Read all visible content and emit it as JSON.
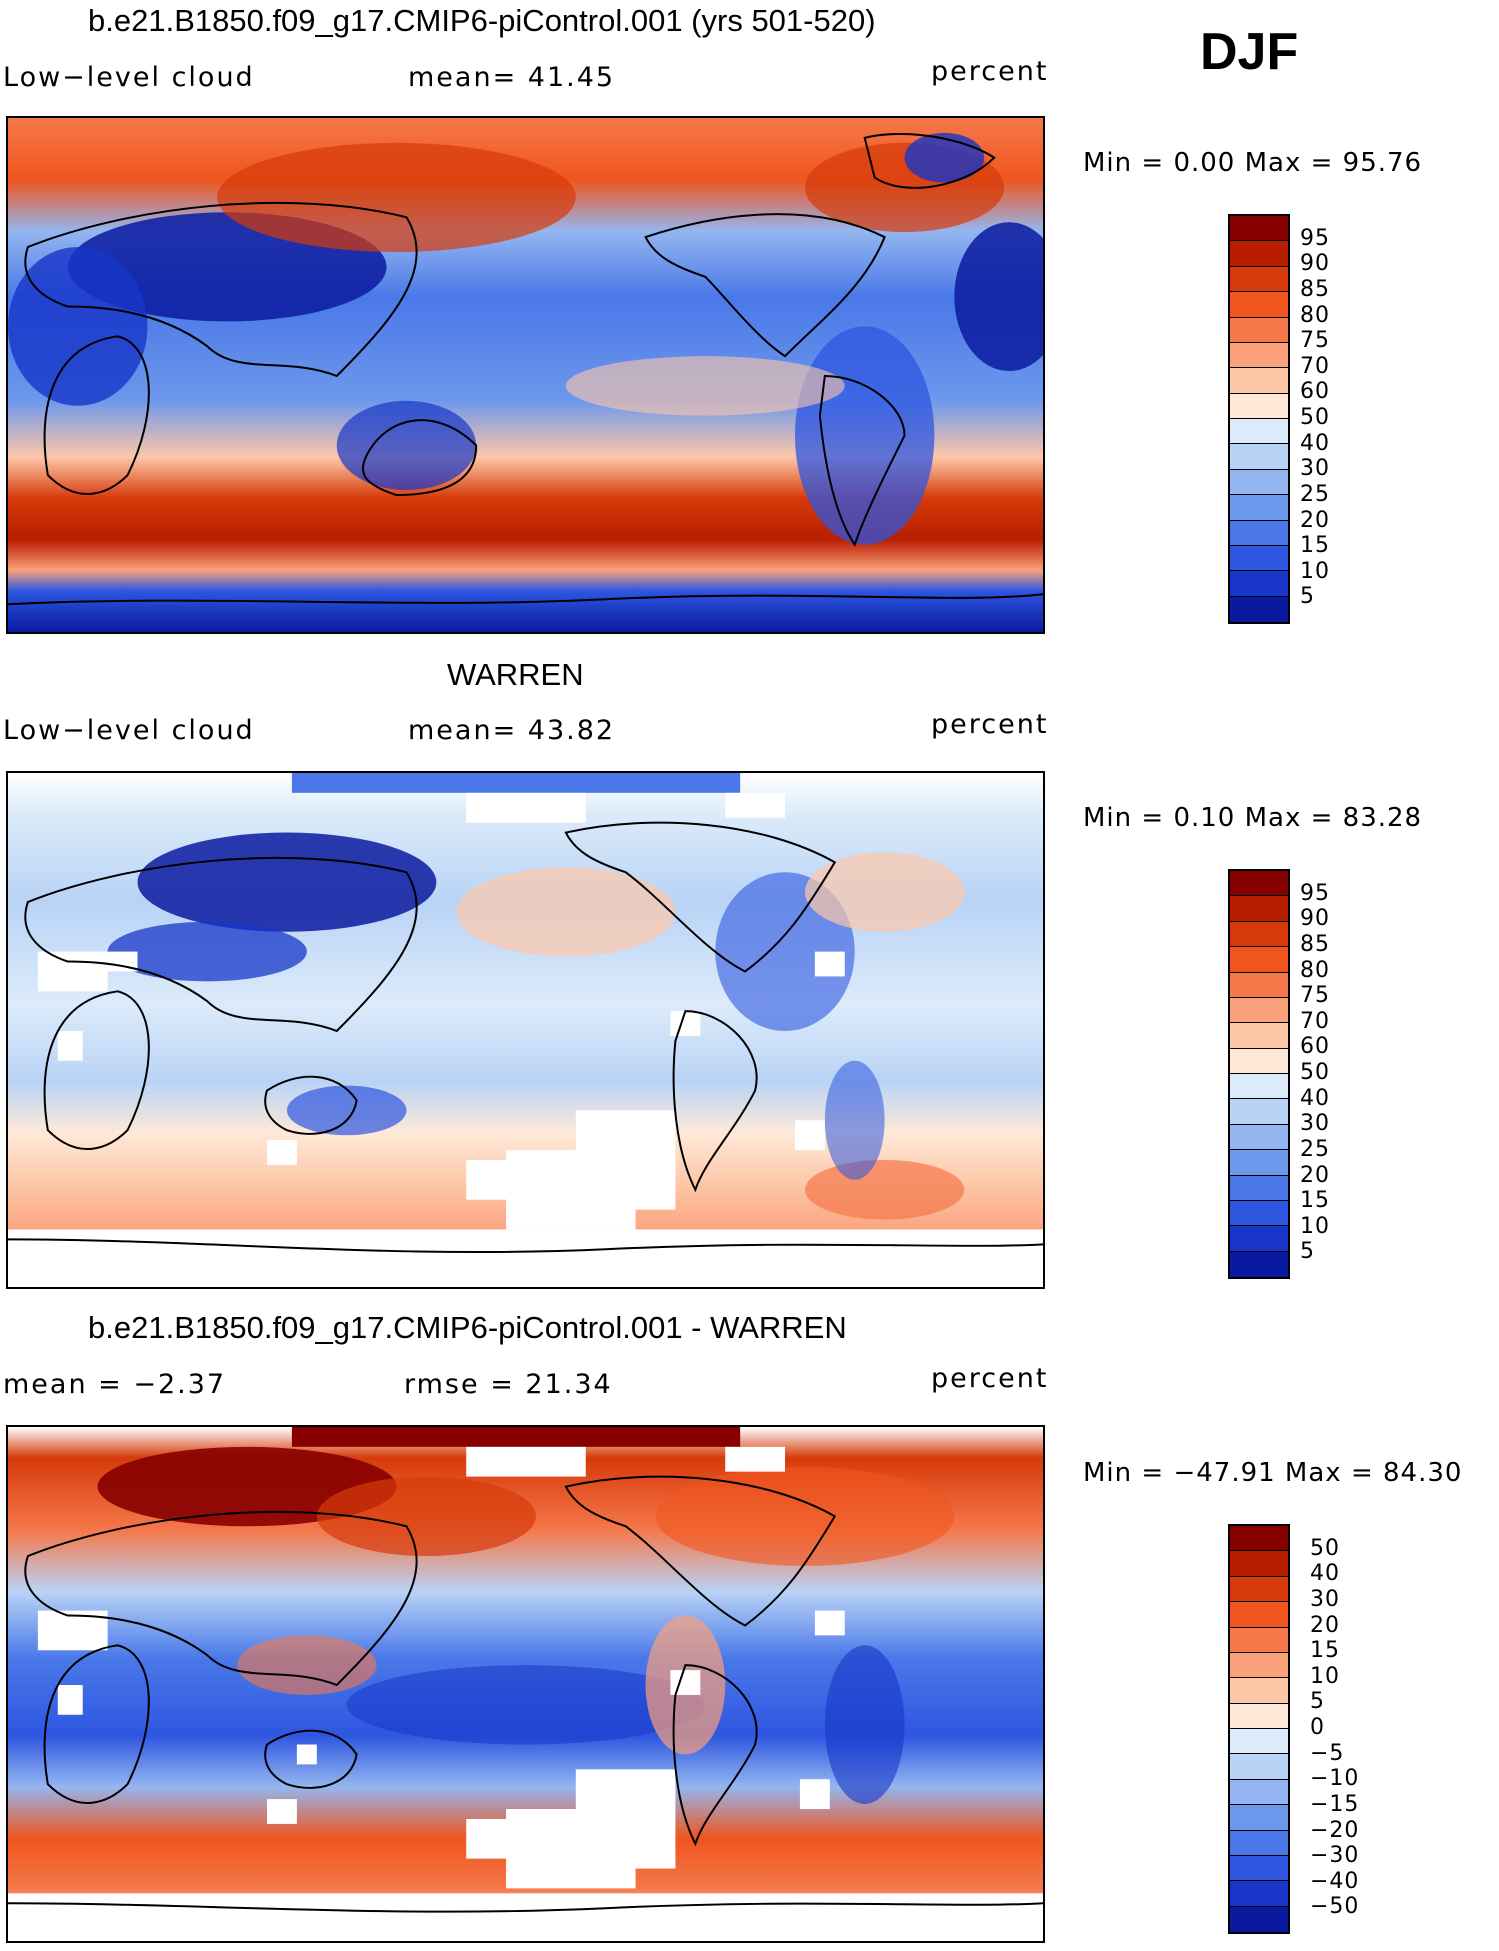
{
  "season": "DJF",
  "panels": [
    {
      "title": "b.e21.B1850.f09_g17.CMIP6-piControl.001 (yrs 501-520)",
      "left_label": "Low−level cloud",
      "center_label": "mean=   41.45",
      "right_label": "percent",
      "minmax": "Min =    0.00 Max =   95.76",
      "colorbar": {
        "colors": [
          "#870000",
          "#b81d00",
          "#d63a0a",
          "#f0551e",
          "#f5784a",
          "#faa07a",
          "#fdc7a8",
          "#fee9d8",
          "#dcebfa",
          "#b9d3f6",
          "#94b6f0",
          "#6e98ec",
          "#4a78e8",
          "#2e56e0",
          "#1736c8",
          "#0a1aa0"
        ],
        "labels": [
          "95",
          "90",
          "85",
          "80",
          "75",
          "70",
          "60",
          "50",
          "40",
          "30",
          "25",
          "20",
          "15",
          "10",
          "5"
        ]
      }
    },
    {
      "title": "WARREN",
      "left_label": "Low−level cloud",
      "center_label": "mean=   43.82",
      "right_label": "percent",
      "minmax": "Min =    0.10 Max =   83.28",
      "colorbar": {
        "colors": [
          "#870000",
          "#b81d00",
          "#d63a0a",
          "#f0551e",
          "#f5784a",
          "#faa07a",
          "#fdc7a8",
          "#fee9d8",
          "#dcebfa",
          "#b9d3f6",
          "#94b6f0",
          "#6e98ec",
          "#4a78e8",
          "#2e56e0",
          "#1736c8",
          "#0a1aa0"
        ],
        "labels": [
          "95",
          "90",
          "85",
          "80",
          "75",
          "70",
          "60",
          "50",
          "40",
          "30",
          "25",
          "20",
          "15",
          "10",
          "5"
        ]
      }
    },
    {
      "title": "b.e21.B1850.f09_g17.CMIP6-piControl.001 - WARREN",
      "left_label": "mean =   −2.37",
      "center_label": "rmse =   21.34",
      "right_label": "percent",
      "minmax": "Min = −47.91  Max =   84.30",
      "colorbar": {
        "colors": [
          "#870000",
          "#b81d00",
          "#d63a0a",
          "#f0551e",
          "#f5784a",
          "#faa07a",
          "#fdc7a8",
          "#fee9d8",
          "#dcebfa",
          "#b9d3f6",
          "#94b6f0",
          "#6e98ec",
          "#4a78e8",
          "#2e56e0",
          "#1736c8",
          "#0a1aa0"
        ],
        "labels": [
          "50",
          "40",
          "30",
          "20",
          "15",
          "10",
          "5",
          "0",
          "−5",
          "−10",
          "−15",
          "−20",
          "−30",
          "−40",
          "−50"
        ]
      }
    }
  ]
}
